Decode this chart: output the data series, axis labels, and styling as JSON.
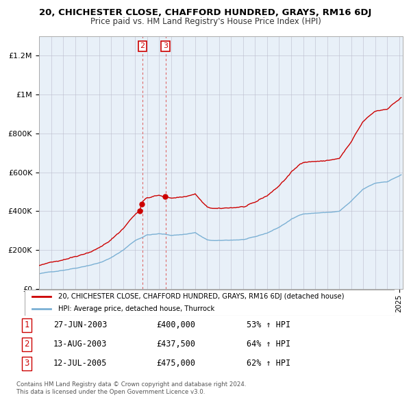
{
  "title": "20, CHICHESTER CLOSE, CHAFFORD HUNDRED, GRAYS, RM16 6DJ",
  "subtitle": "Price paid vs. HM Land Registry's House Price Index (HPI)",
  "legend_line1": "20, CHICHESTER CLOSE, CHAFFORD HUNDRED, GRAYS, RM16 6DJ (detached house)",
  "legend_line2": "HPI: Average price, detached house, Thurrock",
  "footer1": "Contains HM Land Registry data © Crown copyright and database right 2024.",
  "footer2": "This data is licensed under the Open Government Licence v3.0.",
  "transactions": [
    {
      "num": "1",
      "date": "27-JUN-2003",
      "price": "£400,000",
      "pct": "53% ↑ HPI",
      "year": 2003.458
    },
    {
      "num": "2",
      "date": "13-AUG-2003",
      "price": "£437,500",
      "pct": "64% ↑ HPI",
      "year": 2003.617
    },
    {
      "num": "3",
      "date": "12-JUL-2005",
      "price": "£475,000",
      "pct": "62% ↑ HPI",
      "year": 2005.533
    }
  ],
  "red_color": "#cc0000",
  "blue_color": "#7ab0d4",
  "vline_color": "#dd6666",
  "ylim": [
    0,
    1300000
  ],
  "yticks": [
    0,
    200000,
    400000,
    600000,
    800000,
    1000000,
    1200000
  ],
  "ytick_labels": [
    "£0",
    "£200K",
    "£400K",
    "£600K",
    "£800K",
    "£1M",
    "£1.2M"
  ],
  "xlim_left": 1995.0,
  "xlim_right": 2025.3,
  "bg_color": "#e8f0f8"
}
